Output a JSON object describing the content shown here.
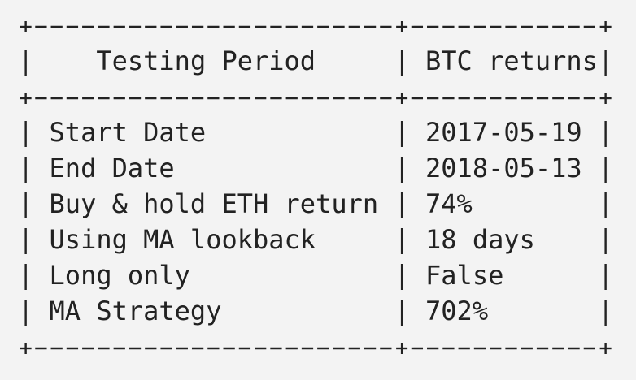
{
  "table": {
    "header": [
      "Testing Period",
      "BTC returns"
    ],
    "rows": [
      [
        "Start Date",
        "2017-05-19"
      ],
      [
        "End Date",
        "2018-05-13"
      ],
      [
        "Buy & hold ETH return",
        "74%"
      ],
      [
        "Using MA lookback",
        "18 days"
      ],
      [
        "Long only",
        "False"
      ],
      [
        "MA Strategy",
        "702%"
      ]
    ]
  }
}
